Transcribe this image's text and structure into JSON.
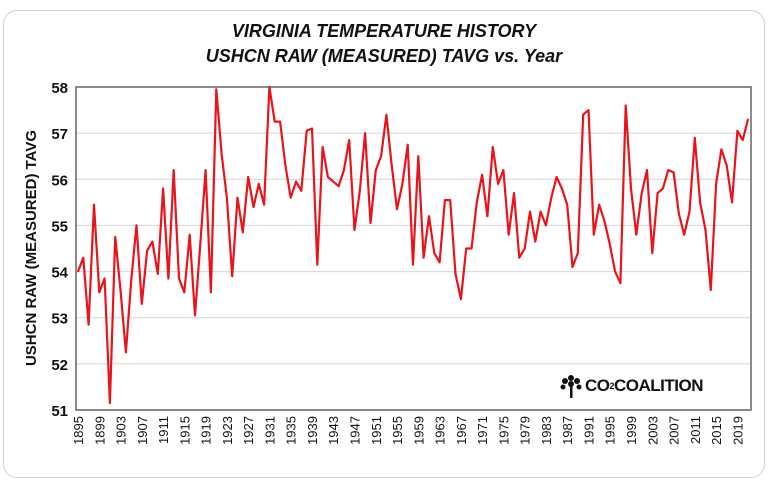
{
  "chart_data": {
    "type": "line",
    "title": "VIRGINIA TEMPERATURE HISTORY",
    "subtitle": "USHCN RAW (MEASURED) TAVG vs. Year",
    "xlabel": "",
    "ylabel": "USHCN RAW (MEASURED) TAVG",
    "ylim": [
      51,
      58
    ],
    "yticks": [
      51,
      52,
      53,
      54,
      55,
      56,
      57,
      58
    ],
    "xlim": [
      1895,
      2021
    ],
    "xticks": [
      1895,
      1899,
      1903,
      1907,
      1911,
      1915,
      1919,
      1923,
      1927,
      1931,
      1935,
      1939,
      1943,
      1947,
      1951,
      1955,
      1959,
      1963,
      1967,
      1971,
      1975,
      1979,
      1983,
      1987,
      1991,
      1995,
      1999,
      2003,
      2007,
      2011,
      2015,
      2019
    ],
    "grid": true,
    "legend": "none",
    "series_color": "#e8141b",
    "x_start": 1895,
    "values": [
      54.0,
      54.3,
      52.85,
      55.45,
      53.55,
      53.85,
      51.15,
      54.75,
      53.6,
      52.25,
      53.8,
      55.0,
      53.3,
      54.45,
      54.65,
      53.95,
      55.8,
      53.85,
      56.2,
      53.85,
      53.55,
      54.8,
      53.05,
      54.6,
      56.2,
      53.55,
      57.95,
      56.55,
      55.6,
      53.9,
      55.6,
      54.85,
      56.05,
      55.4,
      55.9,
      55.45,
      58.0,
      57.25,
      57.25,
      56.3,
      55.6,
      55.95,
      55.75,
      57.05,
      57.1,
      54.15,
      56.7,
      56.05,
      55.95,
      55.85,
      56.2,
      56.85,
      54.9,
      55.75,
      57.0,
      55.05,
      56.2,
      56.5,
      57.4,
      56.3,
      55.35,
      55.9,
      56.75,
      54.15,
      56.5,
      54.3,
      55.2,
      54.4,
      54.2,
      55.55,
      55.55,
      53.95,
      53.4,
      54.5,
      54.5,
      55.5,
      56.1,
      55.2,
      56.7,
      55.9,
      56.2,
      54.8,
      55.7,
      54.3,
      54.5,
      55.3,
      54.65,
      55.3,
      55.0,
      55.6,
      56.05,
      55.8,
      55.45,
      54.1,
      54.4,
      57.4,
      57.5,
      54.8,
      55.45,
      55.1,
      54.6,
      54.0,
      53.75,
      57.6,
      55.8,
      54.8,
      55.7,
      56.2,
      54.4,
      55.7,
      55.8,
      56.2,
      56.15,
      55.25,
      54.8,
      55.3,
      56.9,
      55.5,
      54.9,
      53.6,
      55.9,
      56.65,
      56.3,
      55.5,
      57.05,
      56.85,
      57.3
    ]
  },
  "logo": {
    "text": "CO2COALITION",
    "part1": "CO",
    "sub": "2",
    "part2": "COALITION"
  }
}
